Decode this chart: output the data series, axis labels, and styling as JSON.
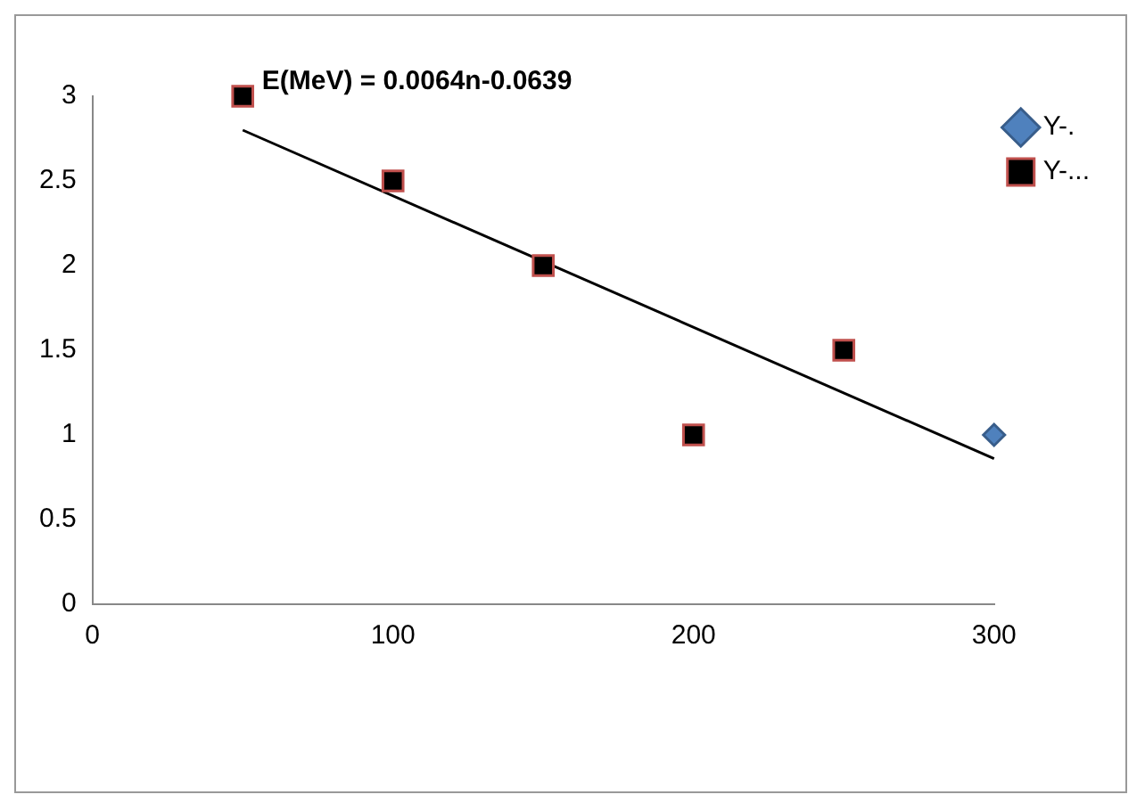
{
  "chart_data": {
    "type": "scatter",
    "annotations": [
      "E(MeV) = 0.0064n-0.0639"
    ],
    "xlim": [
      0,
      300
    ],
    "xticks": [
      0,
      100,
      200,
      300
    ],
    "ylim": [
      0,
      3
    ],
    "yticks": [
      0,
      0.5,
      1,
      1.5,
      2,
      2.5,
      3
    ],
    "grid": false,
    "legend": "right",
    "series": [
      {
        "name": "Y-.",
        "color": "#4f81bd",
        "marker": "diamond",
        "x": [
          300
        ],
        "values": [
          1
        ]
      },
      {
        "name": "Y-...",
        "color": "#000000",
        "marker": "square",
        "x": [
          50,
          100,
          150,
          200,
          250
        ],
        "values": [
          3,
          2.5,
          2,
          1,
          1.5
        ]
      },
      {
        "type": "line",
        "color": "#000000",
        "marker": "none",
        "x": [
          50,
          300
        ],
        "values": [
          2.8,
          0.86
        ]
      }
    ]
  }
}
